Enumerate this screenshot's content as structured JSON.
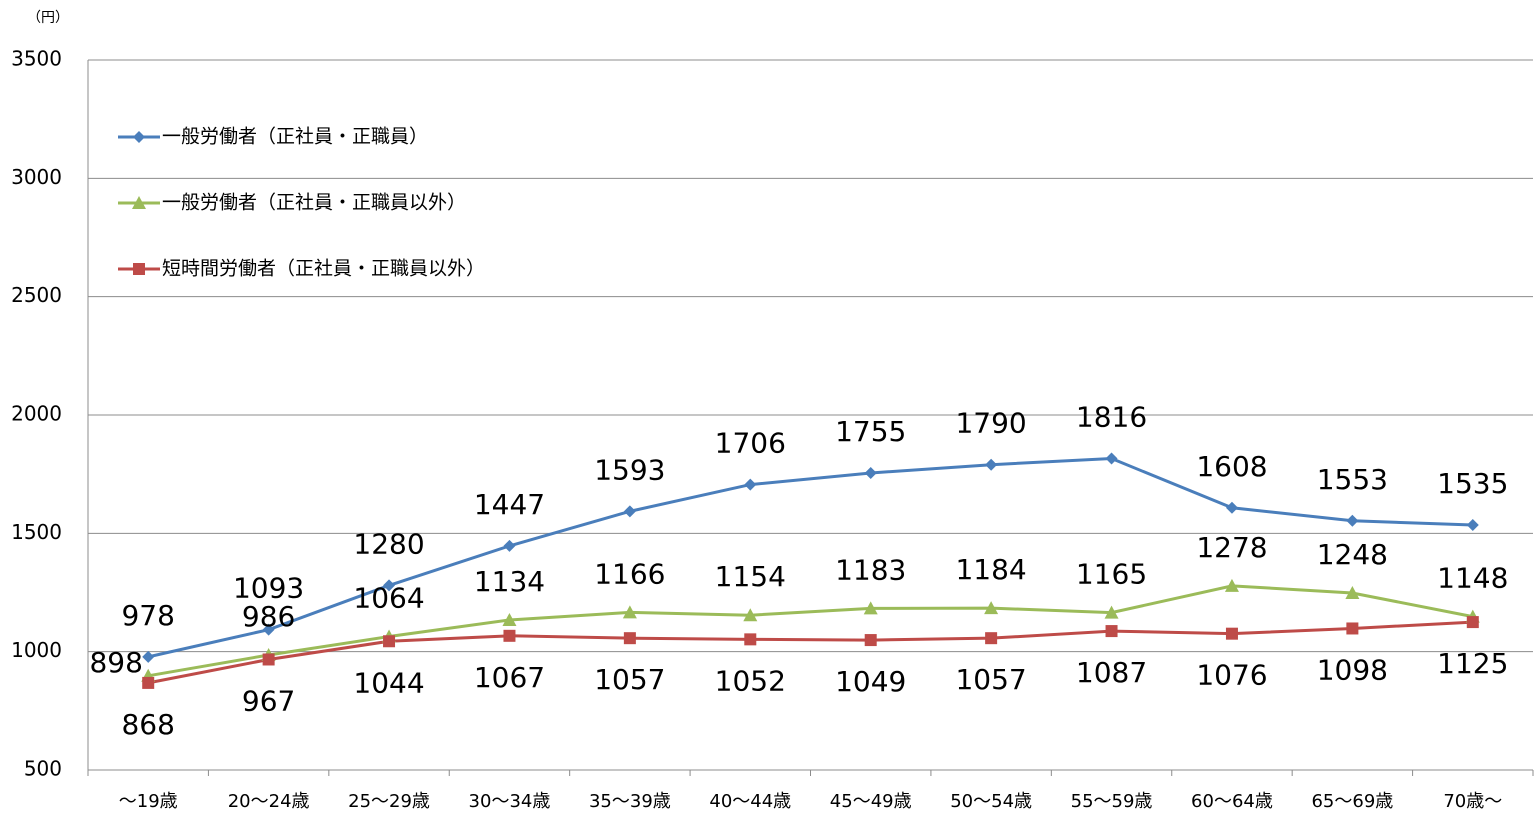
{
  "chart_data": {
    "type": "line",
    "y_label": "（円）",
    "categories": [
      "～19歳",
      "20～24歳",
      "25～29歳",
      "30～34歳",
      "35～39歳",
      "40～44歳",
      "45～49歳",
      "50～54歳",
      "55～59歳",
      "60～64歳",
      "65～69歳",
      "70歳～"
    ],
    "series": [
      {
        "name": "一般労働者（正社員・正職員）",
        "color": "#4a7ebb",
        "marker": "diamond",
        "values": [
          978,
          1093,
          1280,
          1447,
          1593,
          1706,
          1755,
          1790,
          1816,
          1608,
          1553,
          1535
        ]
      },
      {
        "name": "一般労働者（正社員・正職員以外）",
        "color": "#9bbb59",
        "marker": "triangle",
        "values": [
          898,
          986,
          1064,
          1134,
          1166,
          1154,
          1183,
          1184,
          1165,
          1278,
          1248,
          1148
        ]
      },
      {
        "name": "短時間労働者（正社員・正職員以外）",
        "color": "#be4b48",
        "marker": "square",
        "values": [
          868,
          967,
          1044,
          1067,
          1057,
          1052,
          1049,
          1057,
          1087,
          1076,
          1098,
          1125
        ]
      }
    ],
    "ylim": [
      500,
      3500
    ],
    "yticks": [
      500,
      1000,
      1500,
      2000,
      2500,
      3000,
      3500
    ],
    "grid": true,
    "legend": "top-left"
  }
}
